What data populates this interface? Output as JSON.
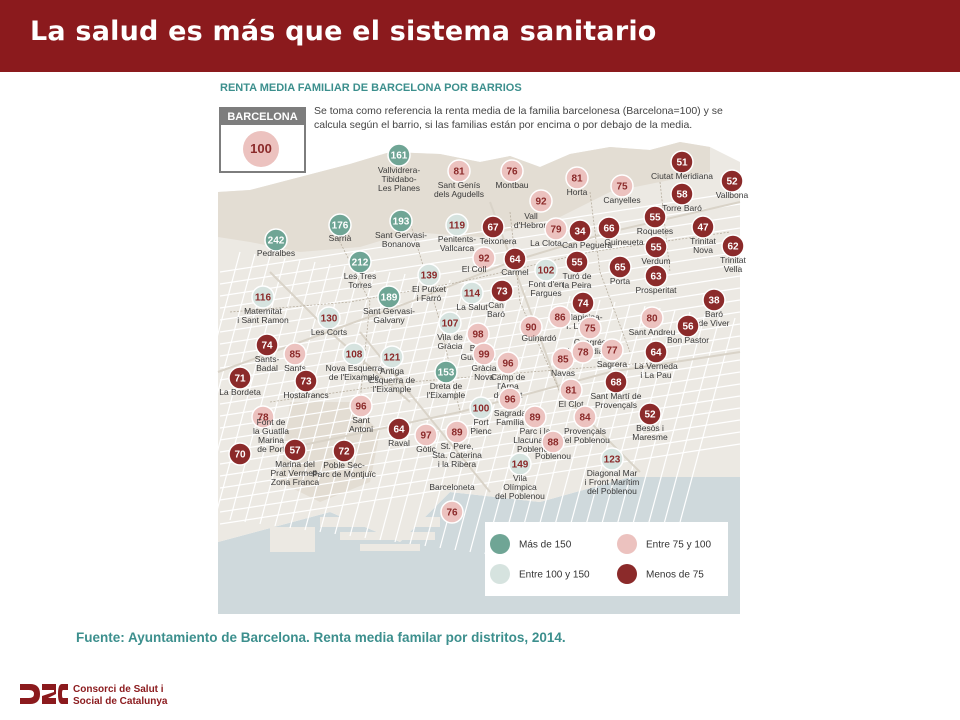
{
  "slide": {
    "title": "La salud es más que el sistema sanitario",
    "source": "Fuente: Ayuntamiento de Barcelona. Renta media familar por distritos, 2014.",
    "logo_lines": [
      "Consorci de Salut i",
      "Social de Catalunya"
    ]
  },
  "map": {
    "title": "RENTA MEDIA FAMILIAR DE BARCELONA POR BARRIOS",
    "reference": {
      "label": "BARCELONA",
      "value": "100"
    },
    "note": "Se toma como referencia la renta media de la familia barcelonesa (Barcelona=100) y se calcula según el barrio, si las familias están por encima o por debajo de la media.",
    "colors": {
      "mas150": "#6fa595",
      "100a150": "#d6e3df",
      "75a100": "#ecc2bf",
      "menos75": "#8b2a2a",
      "land": "#ece9e3",
      "sea": "#cfd9dc",
      "road": "#ffffff"
    },
    "legend": [
      {
        "key": "mas150",
        "label": "Más de 150"
      },
      {
        "key": "75a100",
        "label": "Entre 75 y 100"
      },
      {
        "key": "100a150",
        "label": "Entre 100 y 150"
      },
      {
        "key": "menos75",
        "label": "Menos de 75"
      }
    ],
    "neighborhoods": [
      {
        "value": "161",
        "label": [
          "Vallvidrera-",
          "Tibidabo-",
          "Les Planes"
        ],
        "cat": "mas150"
      },
      {
        "value": "81",
        "label": [
          "Sant Genís",
          "dels Agudells"
        ],
        "cat": "75a100"
      },
      {
        "value": "76",
        "label": [
          "Montbau"
        ],
        "cat": "75a100"
      },
      {
        "value": "81",
        "label": [
          "Horta"
        ],
        "cat": "75a100"
      },
      {
        "value": "75",
        "label": [
          "Canyelles"
        ],
        "cat": "75a100"
      },
      {
        "value": "51",
        "label": [
          "Ciutat Meridiana"
        ],
        "cat": "menos75"
      },
      {
        "value": "52",
        "label": [
          "Vallbona"
        ],
        "cat": "menos75"
      },
      {
        "value": "58",
        "label": [
          "Torre Baró"
        ],
        "cat": "menos75"
      },
      {
        "value": "92",
        "label": [
          "Vall",
          "d'Hebron"
        ],
        "cat": "75a100"
      },
      {
        "value": "176",
        "label": [
          "Sarrià"
        ],
        "cat": "mas150"
      },
      {
        "value": "193",
        "label": [
          "Sant Gervasi-",
          "Bonanova"
        ],
        "cat": "mas150"
      },
      {
        "value": "119",
        "label": [
          "Penitents-",
          "Vallcarca"
        ],
        "cat": "100a150"
      },
      {
        "value": "67",
        "label": [
          "Teixonera"
        ],
        "cat": "menos75"
      },
      {
        "value": "79",
        "label": [
          "La Clota"
        ],
        "cat": "75a100"
      },
      {
        "value": "34",
        "label": [
          "Can Peguera"
        ],
        "cat": "menos75"
      },
      {
        "value": "66",
        "label": [
          "Guineueta"
        ],
        "cat": "menos75"
      },
      {
        "value": "55",
        "label": [
          "Roquetes"
        ],
        "cat": "menos75"
      },
      {
        "value": "47",
        "label": [
          "Trinitat",
          "Nova"
        ],
        "cat": "menos75"
      },
      {
        "value": "62",
        "label": [
          "Trinitat",
          "Vella"
        ],
        "cat": "menos75"
      },
      {
        "value": "242",
        "label": [
          "Pedralbes"
        ],
        "cat": "mas150"
      },
      {
        "value": "212",
        "label": [
          "Les Tres",
          "Torres"
        ],
        "cat": "mas150"
      },
      {
        "value": "139",
        "label": [
          "El Putxet",
          "i Farró"
        ],
        "cat": "100a150"
      },
      {
        "value": "92",
        "label": [
          "El Coll"
        ],
        "cat": "75a100"
      },
      {
        "value": "64",
        "label": [
          "Carmel"
        ],
        "cat": "menos75"
      },
      {
        "value": "102",
        "label": [
          "Font d'en",
          "Fargues"
        ],
        "cat": "100a150"
      },
      {
        "value": "55",
        "label": [
          "Turó de",
          "la Peira"
        ],
        "cat": "menos75"
      },
      {
        "value": "65",
        "label": [
          "Porta"
        ],
        "cat": "menos75"
      },
      {
        "value": "55",
        "label": [
          "Verdum"
        ],
        "cat": "menos75"
      },
      {
        "value": "63",
        "label": [
          "Prosperitat"
        ],
        "cat": "menos75"
      },
      {
        "value": "116",
        "label": [
          "Maternitat",
          "i Sant Ramon"
        ],
        "cat": "100a150"
      },
      {
        "value": "189",
        "label": [
          "Sant Gervasi-",
          "Galvany"
        ],
        "cat": "mas150"
      },
      {
        "value": "114",
        "label": [
          "La Salut"
        ],
        "cat": "100a150"
      },
      {
        "value": "73",
        "label": [
          "Can",
          "Baró"
        ],
        "cat": "menos75"
      },
      {
        "value": "74",
        "label": [
          "Vilapicina-",
          "T. Llobeta"
        ],
        "cat": "menos75"
      },
      {
        "value": "38",
        "label": [
          "Baró",
          "de Viver"
        ],
        "cat": "menos75"
      },
      {
        "value": "130",
        "label": [
          "Les Corts"
        ],
        "cat": "100a150"
      },
      {
        "value": "107",
        "label": [
          "Vila de",
          "Gràcia"
        ],
        "cat": "100a150"
      },
      {
        "value": "98",
        "label": [
          "Baix",
          "Guinardó"
        ],
        "cat": "75a100"
      },
      {
        "value": "90",
        "label": [
          "Guinardó"
        ],
        "cat": "75a100"
      },
      {
        "value": "86",
        "label": [],
        "cat": "75a100"
      },
      {
        "value": "75",
        "label": [
          "Congrés",
          "i els Indians"
        ],
        "cat": "75a100"
      },
      {
        "value": "80",
        "label": [
          "Sant Andreu"
        ],
        "cat": "75a100"
      },
      {
        "value": "56",
        "label": [
          "Bon Pastor"
        ],
        "cat": "menos75"
      },
      {
        "value": "74",
        "label": [
          "Sants-",
          "Badal"
        ],
        "cat": "menos75"
      },
      {
        "value": "85",
        "label": [
          "Sants"
        ],
        "cat": "75a100"
      },
      {
        "value": "108",
        "label": [
          "Nova Esquerra",
          "de l'Eixample"
        ],
        "cat": "100a150"
      },
      {
        "value": "121",
        "label": [
          "Antiga",
          "Esquerra de",
          "l'Eixample"
        ],
        "cat": "100a150"
      },
      {
        "value": "99",
        "label": [
          "Gràcia",
          "Nova"
        ],
        "cat": "75a100"
      },
      {
        "value": "96",
        "label": [
          "Camp de",
          "l'Arpa",
          "del Clot"
        ],
        "cat": "75a100"
      },
      {
        "value": "85",
        "label": [
          "Navas"
        ],
        "cat": "75a100"
      },
      {
        "value": "78",
        "label": [],
        "cat": "75a100"
      },
      {
        "value": "77",
        "label": [
          "Sagrera"
        ],
        "cat": "75a100"
      },
      {
        "value": "64",
        "label": [
          "La Verneda",
          "i La Pau"
        ],
        "cat": "menos75"
      },
      {
        "value": "71",
        "label": [
          "La Bordeta"
        ],
        "cat": "menos75"
      },
      {
        "value": "73",
        "label": [
          "Hostafrancs"
        ],
        "cat": "menos75"
      },
      {
        "value": "153",
        "label": [
          "Dreta de",
          "l'Eixample"
        ],
        "cat": "mas150"
      },
      {
        "value": "96",
        "label": [
          "Sagrada",
          "Família"
        ],
        "cat": "75a100"
      },
      {
        "value": "81",
        "label": [
          "El Clot"
        ],
        "cat": "75a100"
      },
      {
        "value": "68",
        "label": [
          "Sant Martí de",
          "Provençals"
        ],
        "cat": "menos75"
      },
      {
        "value": "78",
        "label": [
          "Font de",
          "la Guatlla",
          "Marina",
          "de Port"
        ],
        "cat": "75a100"
      },
      {
        "value": "96",
        "label": [
          "Sant",
          "Antoni"
        ],
        "cat": "75a100"
      },
      {
        "value": "100",
        "label": [
          "Fort",
          "Pienc"
        ],
        "cat": "100a150"
      },
      {
        "value": "89",
        "label": [
          "Parc i la",
          "Llacuna del",
          "Poblenou"
        ],
        "cat": "75a100"
      },
      {
        "value": "84",
        "label": [
          "Provençals",
          "del Poblenou"
        ],
        "cat": "75a100"
      },
      {
        "value": "52",
        "label": [
          "Besòs i",
          "Maresme"
        ],
        "cat": "menos75"
      },
      {
        "value": "70",
        "label": [],
        "cat": "menos75"
      },
      {
        "value": "57",
        "label": [
          "Marina del",
          "Prat Vermell-",
          "Zona Franca"
        ],
        "cat": "menos75"
      },
      {
        "value": "72",
        "label": [
          "Poble Sec-",
          "Parc de Montjuïc"
        ],
        "cat": "menos75"
      },
      {
        "value": "64",
        "label": [
          "Raval"
        ],
        "cat": "menos75"
      },
      {
        "value": "97",
        "label": [
          "Gòtic"
        ],
        "cat": "75a100"
      },
      {
        "value": "89",
        "label": [
          "St. Pere,",
          "Sta. Caterina",
          "i la Ribera"
        ],
        "cat": "75a100"
      },
      {
        "value": "88",
        "label": [
          "Poblenou"
        ],
        "cat": "75a100"
      },
      {
        "value": "149",
        "label": [
          "Vila",
          "Olímpica",
          "del Poblenou"
        ],
        "cat": "100a150"
      },
      {
        "value": "123",
        "label": [
          "Diagonal Mar",
          "i Front Marítim",
          "del Poblenou"
        ],
        "cat": "100a150"
      },
      {
        "value": "76",
        "label": [
          "Barceloneta"
        ],
        "cat": "75a100"
      }
    ]
  }
}
